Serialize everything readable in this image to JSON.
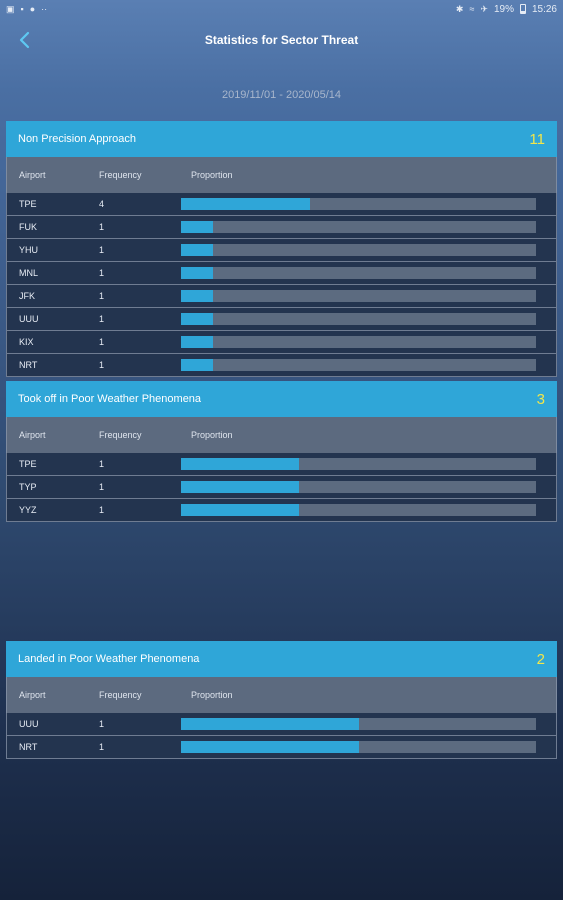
{
  "status": {
    "battery": "19%",
    "time": "15:26"
  },
  "header": {
    "title": "Statistics for Sector Threat"
  },
  "date_range": "2019/11/01 - 2020/05/14",
  "columns": {
    "airport": "Airport",
    "frequency": "Frequency",
    "proportion": "Proportion"
  },
  "colors": {
    "accent": "#2fa6d8",
    "count": "#f2e64a",
    "track": "#5c6b80"
  },
  "sections": [
    {
      "title": "Non Precision Approach",
      "count": "11",
      "rows": [
        {
          "airport": "TPE",
          "frequency": "4",
          "proportion": 0.364
        },
        {
          "airport": "FUK",
          "frequency": "1",
          "proportion": 0.091
        },
        {
          "airport": "YHU",
          "frequency": "1",
          "proportion": 0.091
        },
        {
          "airport": "MNL",
          "frequency": "1",
          "proportion": 0.091
        },
        {
          "airport": "JFK",
          "frequency": "1",
          "proportion": 0.091
        },
        {
          "airport": "UUU",
          "frequency": "1",
          "proportion": 0.091
        },
        {
          "airport": "KIX",
          "frequency": "1",
          "proportion": 0.091
        },
        {
          "airport": "NRT",
          "frequency": "1",
          "proportion": 0.091
        }
      ]
    },
    {
      "title": "Took off in Poor Weather Phenomena",
      "count": "3",
      "rows": [
        {
          "airport": "TPE",
          "frequency": "1",
          "proportion": 0.333
        },
        {
          "airport": "TYP",
          "frequency": "1",
          "proportion": 0.333
        },
        {
          "airport": "YYZ",
          "frequency": "1",
          "proportion": 0.333
        }
      ]
    },
    {
      "title": "Landed in Poor Weather Phenomena",
      "count": "2",
      "rows": [
        {
          "airport": "UUU",
          "frequency": "1",
          "proportion": 0.5
        },
        {
          "airport": "NRT",
          "frequency": "1",
          "proportion": 0.5
        }
      ]
    }
  ]
}
